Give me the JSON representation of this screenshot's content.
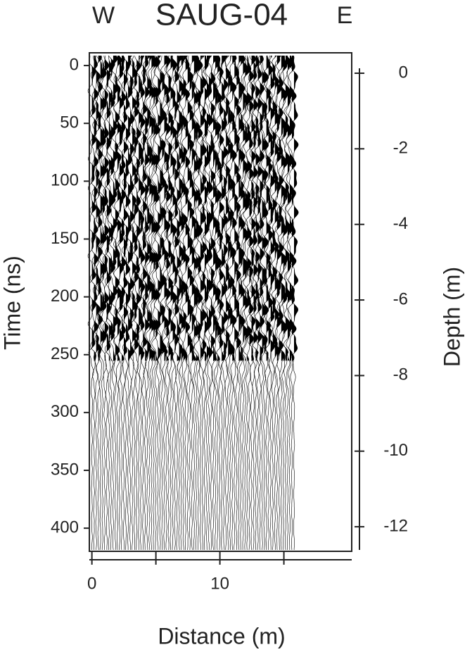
{
  "chart_data": {
    "type": "radargram",
    "title": "SAUG-04",
    "direction_labels": [
      "W",
      "E"
    ],
    "xlabel": "Distance (m)",
    "ylabel": "Time (ns)",
    "y2label": "Depth (m)",
    "xlim": [
      -0.2,
      20.3
    ],
    "xticks": [
      0,
      10
    ],
    "xminor_ticks": [
      5,
      15
    ],
    "ylim": [
      -11,
      420
    ],
    "yticks": [
      0,
      50,
      100,
      150,
      200,
      250,
      300,
      350,
      400
    ],
    "y2lim": [
      0.54,
      -12.65
    ],
    "y2ticks": [
      0,
      -2,
      -4,
      -6,
      -8,
      -10,
      -12
    ]
  }
}
